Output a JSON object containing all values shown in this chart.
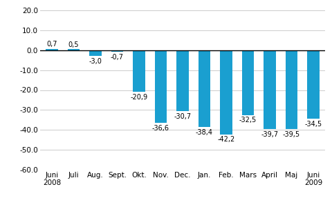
{
  "categories": [
    "Juni\n2008",
    "Juli",
    "Aug.",
    "Sept.",
    "Okt.",
    "Nov.",
    "Dec.",
    "Jan.",
    "Feb.",
    "Mars",
    "April",
    "Maj",
    "Juni\n2009"
  ],
  "values": [
    0.7,
    0.5,
    -3.0,
    -0.7,
    -20.9,
    -36.6,
    -30.7,
    -38.4,
    -42.2,
    -32.5,
    -39.7,
    -39.5,
    -34.5
  ],
  "bar_color": "#1a9fd0",
  "ylim": [
    -60,
    20
  ],
  "yticks": [
    -60,
    -50,
    -40,
    -30,
    -20,
    -10,
    0,
    10,
    20
  ],
  "background_color": "#ffffff",
  "grid_color": "#cccccc",
  "label_fontsize": 7.0,
  "tick_fontsize": 7.5,
  "bar_width": 0.55
}
